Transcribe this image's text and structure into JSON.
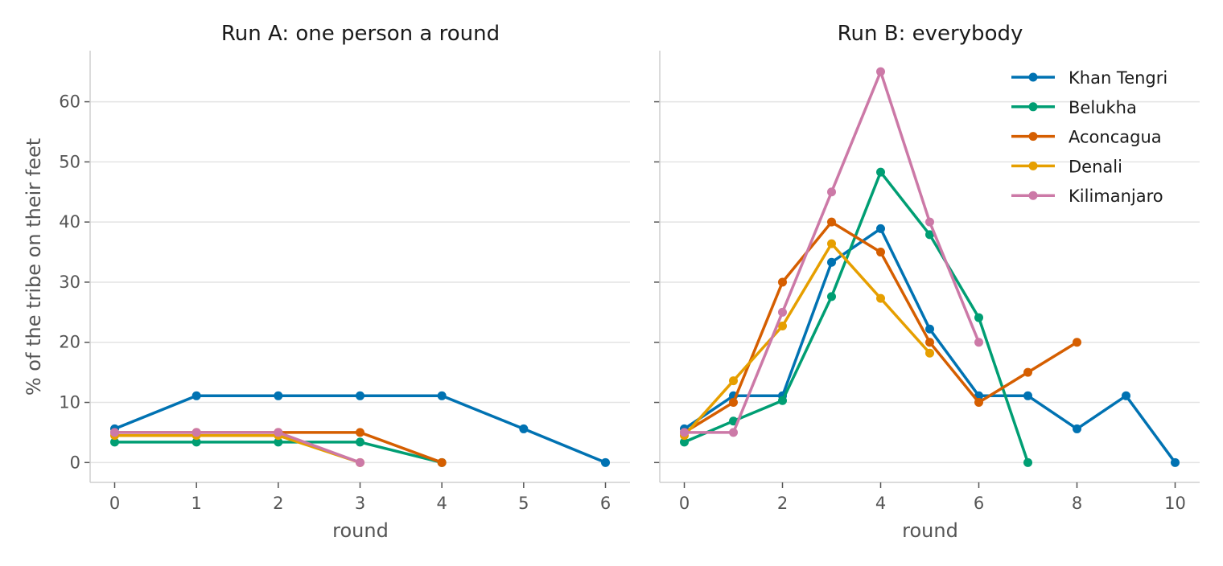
{
  "chart_data": [
    {
      "type": "line",
      "title": "Run A: one person a round",
      "xlabel": "round",
      "ylabel": "% of the tribe on their feet",
      "xlim": [
        -0.3,
        6.3
      ],
      "ylim": [
        -3.3,
        68.5
      ],
      "xticks": [
        0,
        1,
        2,
        3,
        4,
        5,
        6
      ],
      "yticks": [
        0,
        10,
        20,
        30,
        40,
        50,
        60
      ],
      "grid": "horizontal",
      "series": [
        {
          "key": "Khan Tengri",
          "color": "#0072B2",
          "x": [
            0,
            1,
            2,
            3,
            4,
            5,
            6
          ],
          "y": [
            5.6,
            11.1,
            11.1,
            11.1,
            11.1,
            5.6,
            0
          ]
        },
        {
          "key": "Belukha",
          "color": "#009E73",
          "x": [
            0,
            1,
            2,
            3,
            4
          ],
          "y": [
            3.4,
            3.4,
            3.4,
            3.4,
            0
          ]
        },
        {
          "key": "Aconcagua",
          "color": "#D55E00",
          "x": [
            0,
            1,
            2,
            3,
            4
          ],
          "y": [
            5,
            5,
            5,
            5,
            0
          ]
        },
        {
          "key": "Denali",
          "color": "#E69F00",
          "x": [
            0,
            1,
            2,
            3
          ],
          "y": [
            4.5,
            4.5,
            4.5,
            0
          ]
        },
        {
          "key": "Kilimanjaro",
          "color": "#CC79A7",
          "x": [
            0,
            1,
            2,
            3
          ],
          "y": [
            5,
            5,
            5,
            0
          ]
        }
      ]
    },
    {
      "type": "line",
      "title": "Run B: everybody",
      "xlabel": "round",
      "ylabel": "",
      "xlim": [
        -0.5,
        10.5
      ],
      "ylim": [
        -3.3,
        68.5
      ],
      "xticks": [
        0,
        2,
        4,
        6,
        8,
        10
      ],
      "yticks": [
        0,
        10,
        20,
        30,
        40,
        50,
        60
      ],
      "grid": "horizontal",
      "legend": "top-right",
      "series": [
        {
          "name": "Khan Tengri",
          "color": "#0072B2",
          "x": [
            0,
            1,
            2,
            3,
            4,
            5,
            6,
            7,
            8,
            9,
            10
          ],
          "y": [
            5.6,
            11.1,
            11.1,
            33.3,
            38.9,
            22.2,
            11.1,
            11.1,
            5.6,
            11.1,
            0
          ]
        },
        {
          "name": "Belukha",
          "color": "#009E73",
          "x": [
            0,
            1,
            2,
            3,
            4,
            5,
            6,
            7
          ],
          "y": [
            3.4,
            6.9,
            10.3,
            27.6,
            48.3,
            37.9,
            24.1,
            0
          ]
        },
        {
          "name": "Aconcagua",
          "color": "#D55E00",
          "x": [
            0,
            1,
            2,
            3,
            4,
            5,
            6,
            7,
            8
          ],
          "y": [
            5,
            10,
            30,
            40,
            35,
            20,
            10,
            15,
            20
          ]
        },
        {
          "name": "Denali",
          "color": "#E69F00",
          "x": [
            0,
            1,
            2,
            3,
            4,
            5
          ],
          "y": [
            4.5,
            13.6,
            22.7,
            36.4,
            27.3,
            18.2
          ]
        },
        {
          "name": "Kilimanjaro",
          "color": "#CC79A7",
          "x": [
            0,
            1,
            2,
            3,
            4,
            5,
            6
          ],
          "y": [
            5,
            5,
            25,
            45,
            65,
            40,
            20
          ]
        }
      ]
    }
  ]
}
